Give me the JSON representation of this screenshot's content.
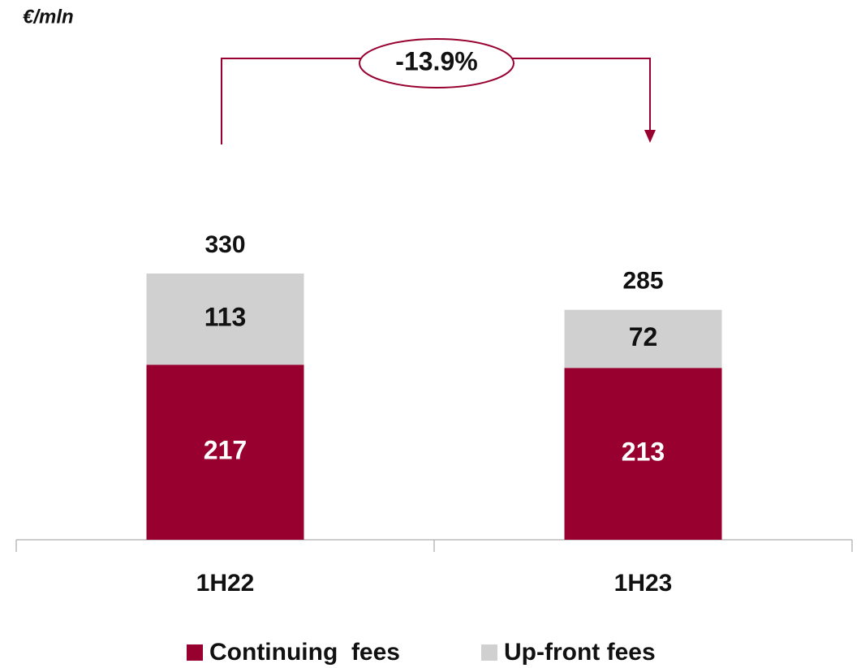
{
  "chart_data": {
    "type": "stacked_bar",
    "unit_label": "€/mln",
    "annotation": "-13.9%",
    "categories": [
      "1H22",
      "1H23"
    ],
    "series": [
      {
        "name": "Continuing  fees",
        "color": "#980030",
        "values": [
          217,
          213
        ]
      },
      {
        "name": "Up-front fees",
        "color": "#d0d0d0",
        "values": [
          113,
          72
        ]
      }
    ],
    "totals": [
      330,
      285
    ],
    "ylim": [
      0,
      330
    ]
  }
}
